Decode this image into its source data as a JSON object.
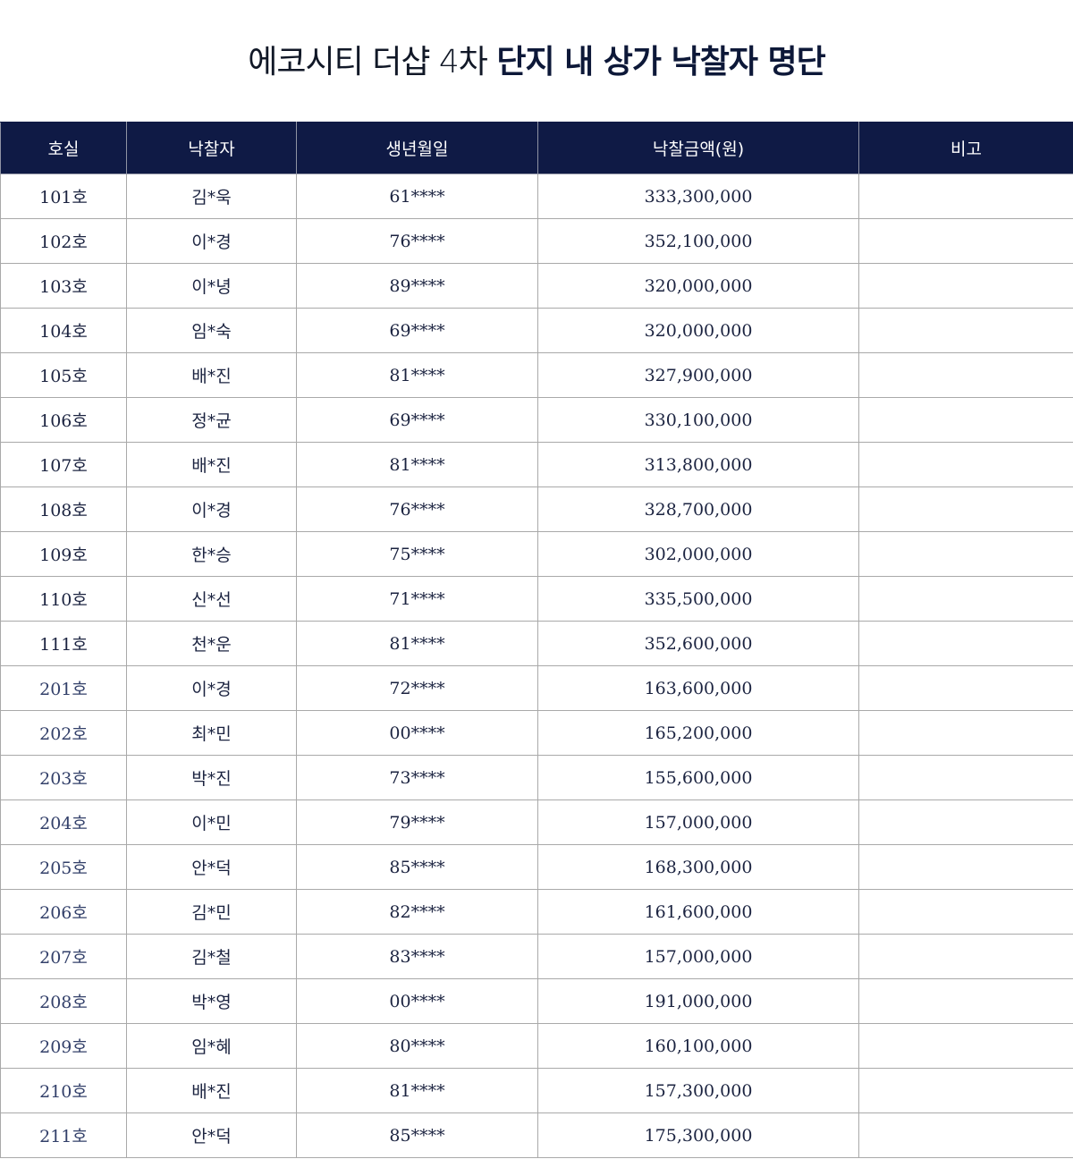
{
  "title": {
    "light": "에코시티 더샵 4차",
    "bold": "단지 내 상가 낙찰자 명단"
  },
  "table": {
    "headers": [
      "호실",
      "낙찰자",
      "생년월일",
      "낙찰금액(원)",
      "비고"
    ],
    "rows": [
      {
        "room": "101호",
        "name": "김*욱",
        "birth": "61****",
        "amount": "333,300,000",
        "note": ""
      },
      {
        "room": "102호",
        "name": "이*경",
        "birth": "76****",
        "amount": "352,100,000",
        "note": ""
      },
      {
        "room": "103호",
        "name": "이*녕",
        "birth": "89****",
        "amount": "320,000,000",
        "note": ""
      },
      {
        "room": "104호",
        "name": "임*숙",
        "birth": "69****",
        "amount": "320,000,000",
        "note": ""
      },
      {
        "room": "105호",
        "name": "배*진",
        "birth": "81****",
        "amount": "327,900,000",
        "note": ""
      },
      {
        "room": "106호",
        "name": "정*균",
        "birth": "69****",
        "amount": "330,100,000",
        "note": ""
      },
      {
        "room": "107호",
        "name": "배*진",
        "birth": "81****",
        "amount": "313,800,000",
        "note": ""
      },
      {
        "room": "108호",
        "name": "이*경",
        "birth": "76****",
        "amount": "328,700,000",
        "note": ""
      },
      {
        "room": "109호",
        "name": "한*승",
        "birth": "75****",
        "amount": "302,000,000",
        "note": ""
      },
      {
        "room": "110호",
        "name": "신*선",
        "birth": "71****",
        "amount": "335,500,000",
        "note": ""
      },
      {
        "room": "111호",
        "name": "천*운",
        "birth": "81****",
        "amount": "352,600,000",
        "note": ""
      },
      {
        "room": "201호",
        "name": "이*경",
        "birth": "72****",
        "amount": "163,600,000",
        "note": ""
      },
      {
        "room": "202호",
        "name": "최*민",
        "birth": "00****",
        "amount": "165,200,000",
        "note": ""
      },
      {
        "room": "203호",
        "name": "박*진",
        "birth": "73****",
        "amount": "155,600,000",
        "note": ""
      },
      {
        "room": "204호",
        "name": "이*민",
        "birth": "79****",
        "amount": "157,000,000",
        "note": ""
      },
      {
        "room": "205호",
        "name": "안*덕",
        "birth": "85****",
        "amount": "168,300,000",
        "note": ""
      },
      {
        "room": "206호",
        "name": "김*민",
        "birth": "82****",
        "amount": "161,600,000",
        "note": ""
      },
      {
        "room": "207호",
        "name": "김*철",
        "birth": "83****",
        "amount": "157,000,000",
        "note": ""
      },
      {
        "room": "208호",
        "name": "박*영",
        "birth": "00****",
        "amount": "191,000,000",
        "note": ""
      },
      {
        "room": "209호",
        "name": "임*혜",
        "birth": "80****",
        "amount": "160,100,000",
        "note": ""
      },
      {
        "room": "210호",
        "name": "배*진",
        "birth": "81****",
        "amount": "157,300,000",
        "note": ""
      },
      {
        "room": "211호",
        "name": "안*덕",
        "birth": "85****",
        "amount": "175,300,000",
        "note": ""
      }
    ]
  },
  "colors": {
    "header_bg": "#0f1a45",
    "header_text": "#ffffff",
    "body_text": "#1b2340",
    "border": "#a9a9a9"
  }
}
